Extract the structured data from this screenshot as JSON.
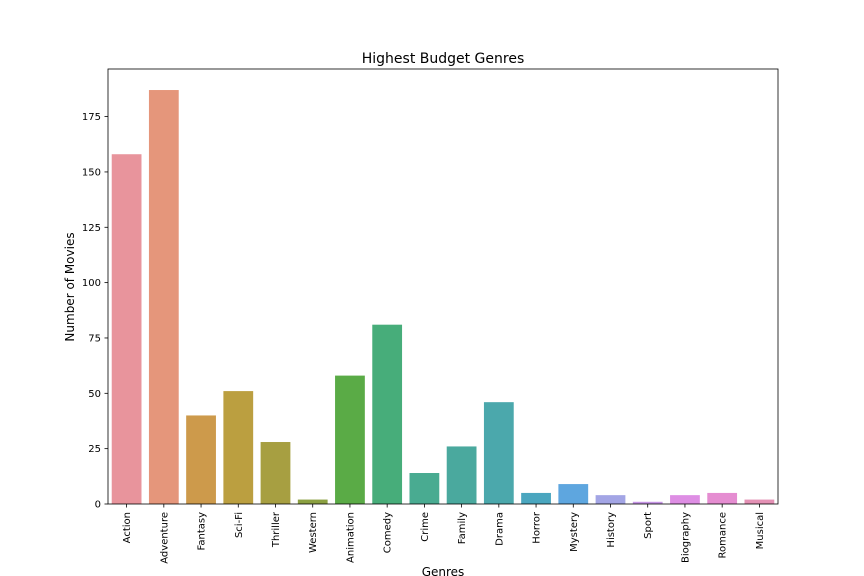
{
  "chart_data": {
    "type": "bar",
    "title": "Highest Budget Genres",
    "xlabel": "Genres",
    "ylabel": "Number of Movies",
    "categories": [
      "Action",
      "Adventure",
      "Fantasy",
      "Sci-Fi",
      "Thriller",
      "Western",
      "Animation",
      "Comedy",
      "Crime",
      "Family",
      "Drama",
      "Horror",
      "Mystery",
      "History",
      "Sport",
      "Biography",
      "Romance",
      "Musical"
    ],
    "values": [
      158,
      187,
      40,
      51,
      28,
      2,
      58,
      81,
      14,
      26,
      46,
      5,
      9,
      4,
      1,
      4,
      5,
      2
    ],
    "colors": [
      "#e8949c",
      "#e5967b",
      "#cd9a4b",
      "#bb9f40",
      "#a79f41",
      "#8ba041",
      "#5aab46",
      "#47ad7a",
      "#49ab91",
      "#4aa99e",
      "#4ba8ac",
      "#4aa6bf",
      "#5ea6df",
      "#a3a5e5",
      "#c695e5",
      "#de8ee4",
      "#e58dd1",
      "#e491b5"
    ],
    "yticks": [
      0,
      25,
      50,
      75,
      100,
      125,
      150,
      175
    ],
    "ylim": [
      0,
      196.5
    ],
    "grid": false,
    "legend": "none"
  }
}
